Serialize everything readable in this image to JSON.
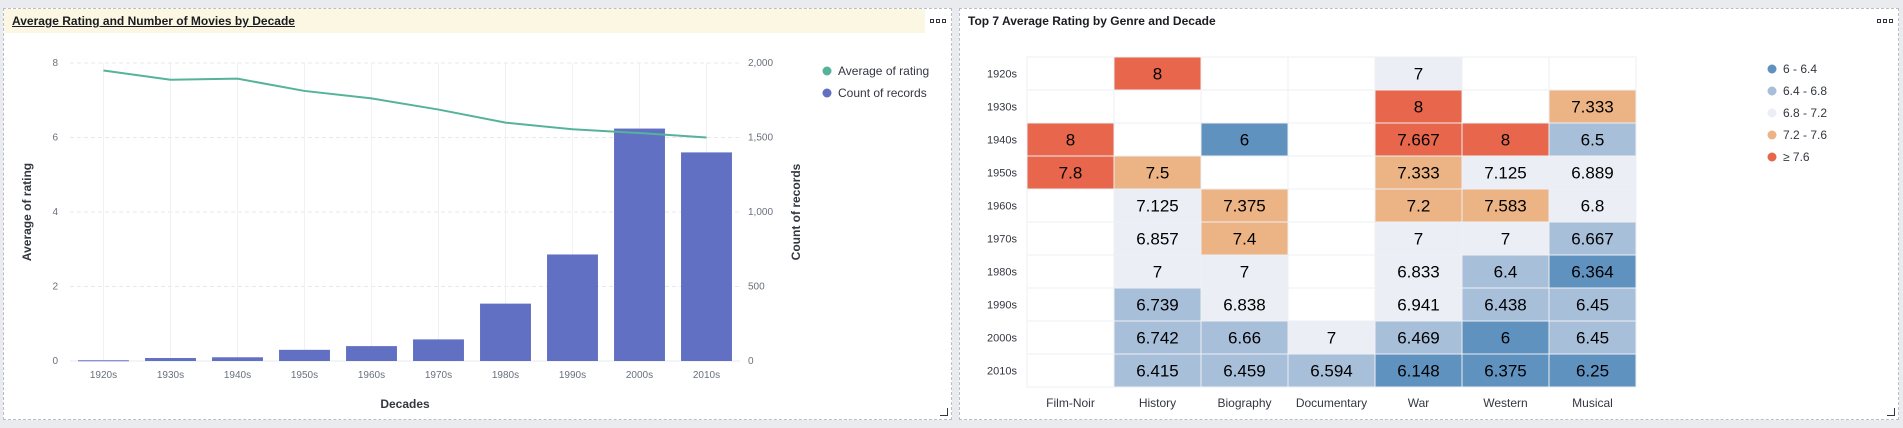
{
  "panels": [
    {
      "title": "Average Rating and Number of Movies by Decade"
    },
    {
      "title": "Top 7 Average Rating by Genre and Decade"
    }
  ],
  "chart_data": [
    {
      "type": "bar",
      "title": "Average Rating and Number of Movies by Decade",
      "categories": [
        "1920s",
        "1930s",
        "1940s",
        "1950s",
        "1960s",
        "1970s",
        "1980s",
        "1990s",
        "2000s",
        "2010s"
      ],
      "xlabel": "Decades",
      "ylabel": "Average of rating",
      "y2label": "Count of records",
      "ylim": [
        0,
        8
      ],
      "y2lim": [
        0,
        2000
      ],
      "yticks": [
        "0",
        "2",
        "4",
        "6",
        "8"
      ],
      "y2ticks": [
        "0",
        "500",
        "1,000",
        "1,500",
        "2,000"
      ],
      "series": [
        {
          "name": "Average of rating",
          "type": "line",
          "axis": "left",
          "color": "#54b399",
          "values": [
            7.8,
            7.55,
            7.58,
            7.25,
            7.05,
            6.75,
            6.4,
            6.22,
            6.12,
            6.0
          ]
        },
        {
          "name": "Count of records",
          "type": "bar",
          "axis": "right",
          "color": "#6270c3",
          "values": [
            5,
            20,
            25,
            75,
            100,
            145,
            385,
            715,
            1560,
            1400
          ]
        }
      ],
      "grid": true,
      "legend": "top-right"
    },
    {
      "type": "heatmap",
      "title": "Top 7 Average Rating by Genre and Decade",
      "rows": [
        "1920s",
        "1930s",
        "1940s",
        "1950s",
        "1960s",
        "1970s",
        "1980s",
        "1990s",
        "2000s",
        "2010s"
      ],
      "columns": [
        "Film-Noir",
        "History",
        "Biography",
        "Documentary",
        "War",
        "Western",
        "Musical"
      ],
      "cells": [
        [
          "",
          "8",
          "",
          "",
          "7",
          "",
          ""
        ],
        [
          "",
          "",
          "",
          "",
          "8",
          "",
          "7.333"
        ],
        [
          "8",
          "",
          "6",
          "",
          "7.667",
          "8",
          "6.5"
        ],
        [
          "7.8",
          "7.5",
          "",
          "",
          "7.333",
          "7.125",
          "6.889"
        ],
        [
          "",
          "7.125",
          "7.375",
          "",
          "7.2",
          "7.583",
          "6.8"
        ],
        [
          "",
          "6.857",
          "7.4",
          "",
          "7",
          "7",
          "6.667"
        ],
        [
          "",
          "7",
          "7",
          "",
          "6.833",
          "6.4",
          "6.364"
        ],
        [
          "",
          "6.739",
          "6.838",
          "",
          "6.941",
          "6.438",
          "6.45"
        ],
        [
          "",
          "6.742",
          "6.66",
          "7",
          "6.469",
          "6",
          "6.45"
        ],
        [
          "",
          "6.415",
          "6.459",
          "6.594",
          "6.148",
          "6.375",
          "6.25"
        ]
      ],
      "legend_items": [
        {
          "label": "6 - 6.4",
          "color": "#6092c0"
        },
        {
          "label": "6.4 - 6.8",
          "color": "#a8bfda"
        },
        {
          "label": "6.8 - 7.2",
          "color": "#ebeff5"
        },
        {
          "label": "7.2 - 7.6",
          "color": "#ecb385"
        },
        {
          "label": "≥ 7.6",
          "color": "#e7664c"
        }
      ],
      "legend": "right"
    }
  ]
}
